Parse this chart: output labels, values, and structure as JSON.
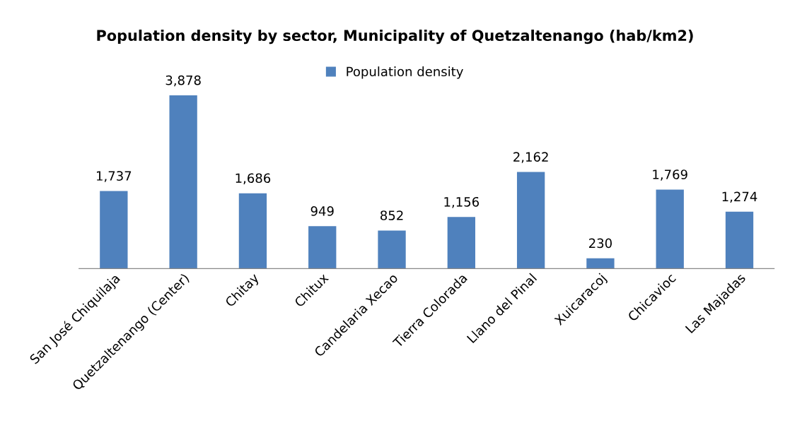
{
  "chart_data": {
    "type": "bar",
    "title": "Population density by sector, Municipality of Quetzaltenango (hab/km2)",
    "categories": [
      "San José Chiquilaja",
      "Quetzaltenango (Center)",
      "Chitay",
      "Chitux",
      "Candelaria Xecao",
      "Tierra Colorada",
      "Llano del Pinal",
      "Xuicaracoj",
      "Chicavioc",
      "Las Majadas"
    ],
    "series": [
      {
        "name": "Population density",
        "color": "#4f81bd",
        "values": [
          1737,
          3878,
          1686,
          949,
          852,
          1156,
          2162,
          230,
          1769,
          1274
        ],
        "value_labels": [
          "1,737",
          "3,878",
          "1,686",
          "949",
          "852",
          "1,156",
          "2,162",
          "230",
          "1,769",
          "1,274"
        ]
      }
    ],
    "legend": "top",
    "grid": false
  }
}
